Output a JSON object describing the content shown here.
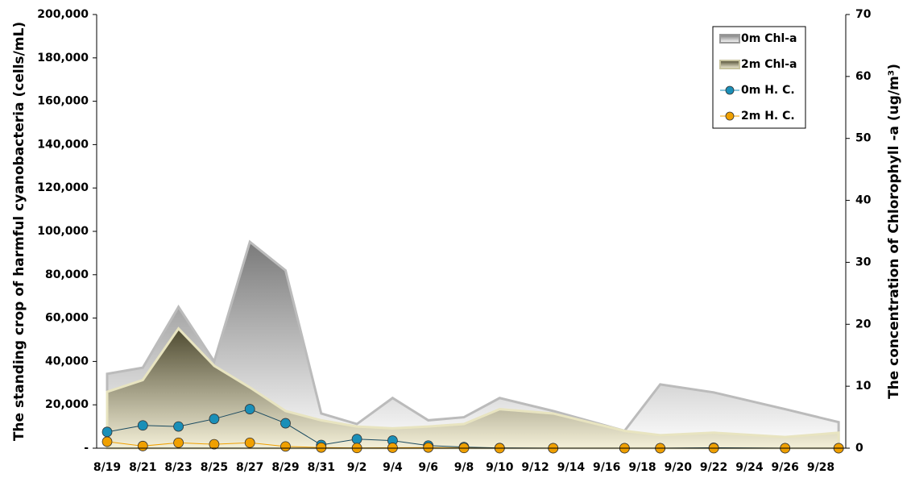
{
  "chart_data": {
    "type": "combo",
    "y_title": "The standing crop of harmful cyanobacteria  (cells/mL)",
    "y2_title": "The concentration of Chlorophyll -a (ug/m³)",
    "x": [
      "8/19",
      "8/21",
      "8/23",
      "8/25",
      "8/27",
      "8/29",
      "8/31",
      "9/2",
      "9/4",
      "9/6",
      "9/8",
      "9/10",
      "9/13",
      "9/17",
      "9/19",
      "9/22",
      "9/26",
      "9/29"
    ],
    "xticks": [
      "8/19",
      "8/21",
      "8/23",
      "8/25",
      "8/27",
      "8/29",
      "8/31",
      "9/2",
      "9/4",
      "9/6",
      "9/8",
      "9/10",
      "9/12",
      "9/14",
      "9/16",
      "9/18",
      "9/20",
      "9/22",
      "9/24",
      "9/26",
      "9/28"
    ],
    "ylim": [
      0,
      200000
    ],
    "yticks": [
      {
        "value": 0,
        "label": "-"
      },
      {
        "value": 20000,
        "label": "20,000"
      },
      {
        "value": 40000,
        "label": "40,000"
      },
      {
        "value": 60000,
        "label": "60,000"
      },
      {
        "value": 80000,
        "label": "80,000"
      },
      {
        "value": 100000,
        "label": "100,000"
      },
      {
        "value": 120000,
        "label": "120,000"
      },
      {
        "value": 140000,
        "label": "140,000"
      },
      {
        "value": 160000,
        "label": "160,000"
      },
      {
        "value": 180000,
        "label": "180,000"
      },
      {
        "value": 200000,
        "label": "200,000"
      }
    ],
    "y2lim": [
      0,
      70
    ],
    "y2ticks": [
      0,
      10,
      20,
      30,
      40,
      50,
      60,
      70
    ],
    "legend": "top-right",
    "series": [
      {
        "name": "0m Chl-a",
        "type": "area",
        "axis": "y2",
        "color": "#7a7a7a",
        "values": [
          12,
          13,
          22.8,
          14,
          33.3,
          28.7,
          5.6,
          3.9,
          8.1,
          4.5,
          5,
          8.1,
          6,
          2.8,
          10.3,
          9,
          6.3,
          4.2
        ]
      },
      {
        "name": "2m Chl-a",
        "type": "area",
        "axis": "y2",
        "color": "#4e4a30",
        "values": [
          9.1,
          11,
          19.3,
          13.3,
          9.8,
          6,
          4.5,
          3.5,
          3.2,
          3.5,
          3.9,
          6.3,
          5.6,
          2.8,
          2.1,
          2.5,
          1.8,
          2.5
        ]
      },
      {
        "name": "0m H. C.",
        "type": "line",
        "color": "#1a8fb8",
        "values": [
          7500,
          10500,
          10000,
          13500,
          18000,
          11500,
          1500,
          4200,
          3500,
          1200,
          500,
          100,
          0,
          0,
          0,
          200,
          0,
          0
        ]
      },
      {
        "name": "2m H. C.",
        "type": "line",
        "color": "#f0a000",
        "values": [
          3000,
          1000,
          2500,
          1800,
          2500,
          800,
          300,
          100,
          200,
          300,
          100,
          0,
          0,
          0,
          0,
          0,
          0,
          0
        ]
      }
    ]
  }
}
